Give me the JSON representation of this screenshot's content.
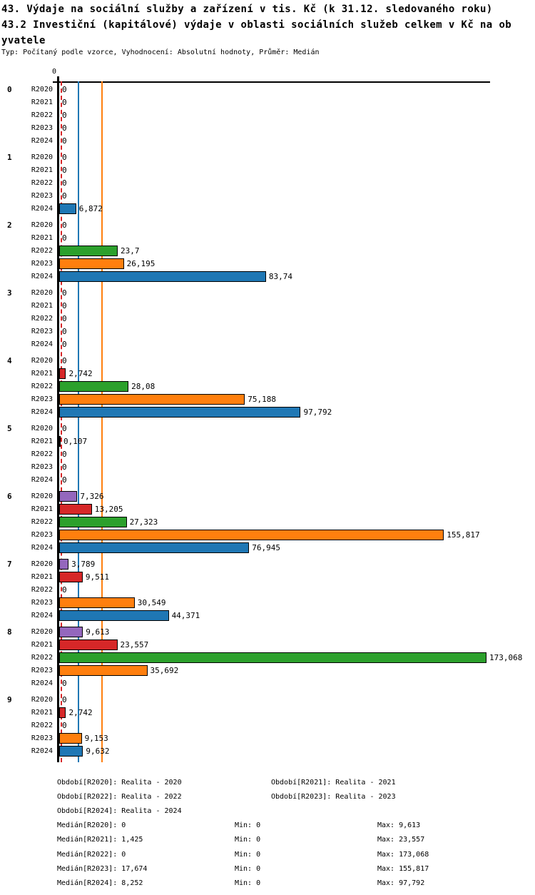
{
  "header": {
    "title_lines": [
      "43. Výdaje na sociální služby a zařízení v tis. Kč (k 31.12. sledovaného roku)",
      "43.2 Investiční (kapitálové) výdaje v oblasti sociálních služeb celkem v Kč na ob",
      "yvatele"
    ],
    "meta": "Typ: Počítaný podle vzorce, Vyhodnocení: Absolutní hodnoty, Průměr: Medián"
  },
  "chart_data": {
    "type": "bar",
    "orientation": "horizontal",
    "title": "43.2 Investiční (kapitálové) výdaje v oblasti sociálních služeb celkem v Kč na obyvatele",
    "x_axis": {
      "origin_tick_label": "0",
      "xlim": [
        0,
        180
      ],
      "gridlines": false
    },
    "series_labels": [
      "R2020",
      "R2021",
      "R2022",
      "R2023",
      "R2024"
    ],
    "series_colors": {
      "R2020": "#9467bd",
      "R2021": "#d62728",
      "R2022": "#2ca02c",
      "R2023": "#ff7f0e",
      "R2024": "#1f77b4"
    },
    "x_max": 173.068,
    "groups": [
      {
        "label": "0",
        "values": [
          0,
          0,
          0,
          0,
          0
        ],
        "display": [
          "0",
          "0",
          "0",
          "0",
          "0"
        ]
      },
      {
        "label": "1",
        "values": [
          0,
          0,
          0,
          0,
          6.872
        ],
        "display": [
          "0",
          "0",
          "0",
          "0",
          "6,872"
        ]
      },
      {
        "label": "2",
        "values": [
          0,
          0,
          23.7,
          26.195,
          83.74
        ],
        "display": [
          "0",
          "0",
          "23,7",
          "26,195",
          "83,74"
        ]
      },
      {
        "label": "3",
        "values": [
          0,
          0,
          0,
          0,
          0
        ],
        "display": [
          "0",
          "0",
          "0",
          "0",
          "0"
        ]
      },
      {
        "label": "4",
        "values": [
          0,
          2.742,
          28.08,
          75.188,
          97.792
        ],
        "display": [
          "0",
          "2,742",
          "28,08",
          "75,188",
          "97,792"
        ]
      },
      {
        "label": "5",
        "values": [
          0,
          0.107,
          0,
          0,
          0
        ],
        "display": [
          "0",
          "0,107",
          "0",
          "0",
          "0"
        ]
      },
      {
        "label": "6",
        "values": [
          7.326,
          13.205,
          27.323,
          155.817,
          76.945
        ],
        "display": [
          "7,326",
          "13,205",
          "27,323",
          "155,817",
          "76,945"
        ]
      },
      {
        "label": "7",
        "values": [
          3.789,
          9.511,
          0,
          30.549,
          44.371
        ],
        "display": [
          "3,789",
          "9,511",
          "0",
          "30,549",
          "44,371"
        ]
      },
      {
        "label": "8",
        "values": [
          9.613,
          23.557,
          173.068,
          35.692,
          0
        ],
        "display": [
          "9,613",
          "23,557",
          "173,068",
          "35,692",
          "0"
        ]
      },
      {
        "label": "9",
        "values": [
          0,
          2.742,
          0,
          9.153,
          9.632
        ],
        "display": [
          "0",
          "2,742",
          "0",
          "9,153",
          "9,632"
        ]
      }
    ],
    "reference_lines": [
      {
        "name": "median-R2020",
        "value": 0,
        "color": "#9467bd",
        "style": "solid"
      },
      {
        "name": "median-R2021",
        "value": 1.425,
        "color": "#d62728",
        "style": "dashed"
      },
      {
        "name": "median-R2022",
        "value": 0,
        "color": "#2ca02c",
        "style": "solid"
      },
      {
        "name": "median-R2023",
        "value": 17.674,
        "color": "#ff7f0e",
        "style": "solid"
      },
      {
        "name": "median-R2024",
        "value": 8.252,
        "color": "#1f77b4",
        "style": "solid"
      }
    ],
    "legend": [
      {
        "text": "Období[R2020]: Realita - 2020",
        "row": 0,
        "col": 0
      },
      {
        "text": "Období[R2021]: Realita - 2021",
        "row": 0,
        "col": 1
      },
      {
        "text": "Období[R2022]: Realita - 2022",
        "row": 1,
        "col": 0
      },
      {
        "text": "Období[R2023]: Realita - 2023",
        "row": 1,
        "col": 1
      },
      {
        "text": "Období[R2024]: Realita - 2024",
        "row": 2,
        "col": 0
      }
    ],
    "stats": [
      {
        "median": "Medián[R2020]: 0",
        "min": "Min: 0",
        "max": "Max: 9,613"
      },
      {
        "median": "Medián[R2021]: 1,425",
        "min": "Min: 0",
        "max": "Max: 23,557"
      },
      {
        "median": "Medián[R2022]: 0",
        "min": "Min: 0",
        "max": "Max: 173,068"
      },
      {
        "median": "Medián[R2023]: 17,674",
        "min": "Min: 0",
        "max": "Max: 155,817"
      },
      {
        "median": "Medián[R2024]: 8,252",
        "min": "Min: 0",
        "max": "Max: 97,792"
      }
    ]
  }
}
